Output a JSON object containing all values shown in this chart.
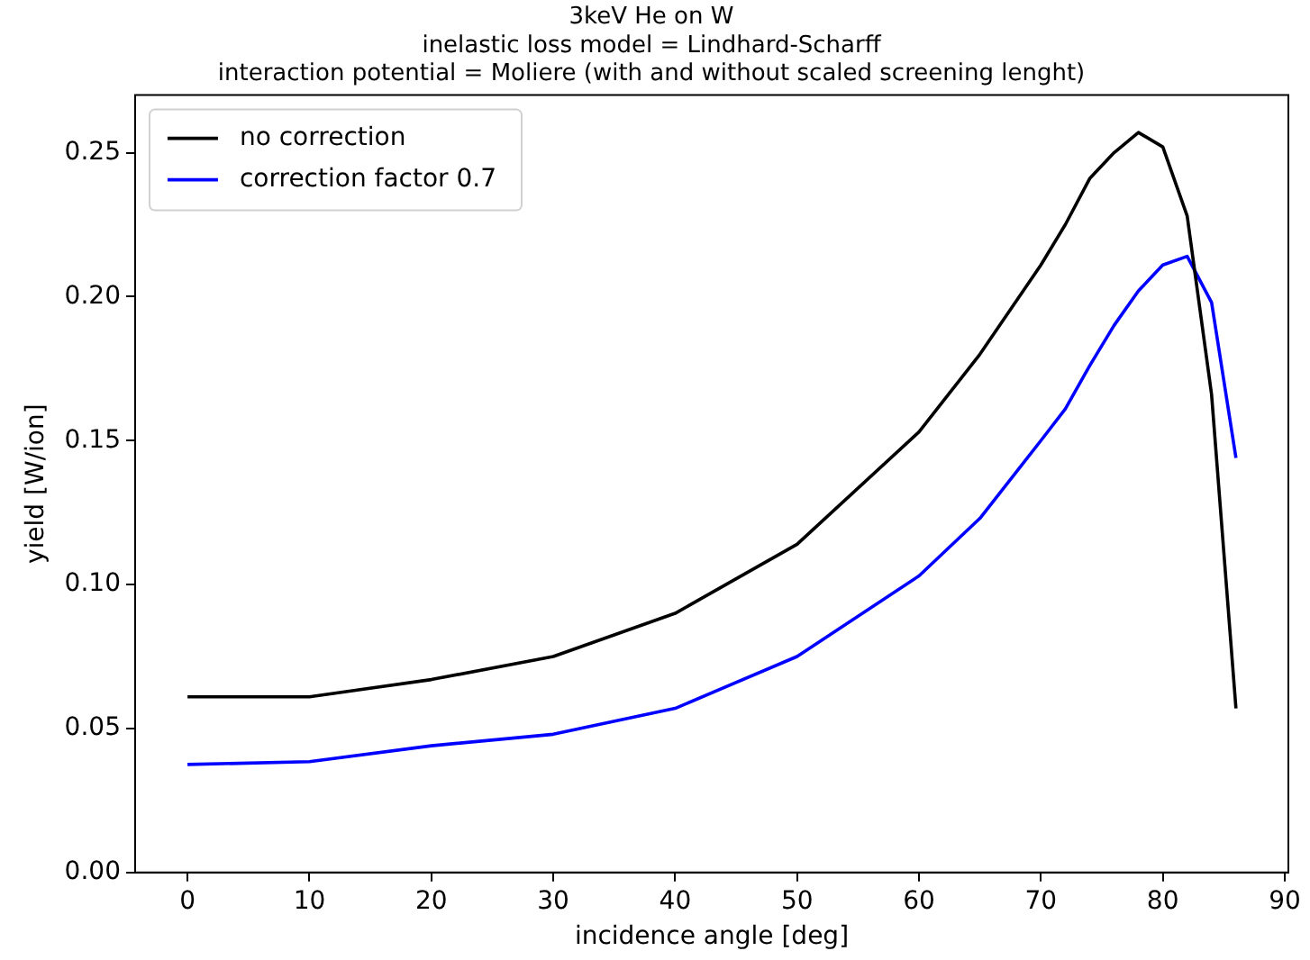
{
  "chart_data": {
    "type": "line",
    "title": [
      "3keV He on W",
      "inelastic loss model = Lindhard-Scharff",
      "interaction potential = Moliere (with and without scaled screening lenght)"
    ],
    "xlabel": "incidence angle [deg]",
    "ylabel": "yield [W/ion]",
    "x": [
      0,
      10,
      20,
      30,
      40,
      50,
      60,
      65,
      70,
      72,
      74,
      76,
      78,
      80,
      82,
      84,
      86
    ],
    "series": [
      {
        "name": "no correction",
        "color": "#000000",
        "values": [
          0.061,
          0.061,
          0.067,
          0.075,
          0.09,
          0.114,
          0.153,
          0.18,
          0.211,
          0.225,
          0.241,
          0.25,
          0.257,
          0.252,
          0.228,
          0.166,
          0.057
        ]
      },
      {
        "name": "correction factor 0.7",
        "color": "#0000ff",
        "values": [
          0.0375,
          0.0385,
          0.044,
          0.048,
          0.057,
          0.075,
          0.103,
          0.123,
          0.15,
          0.161,
          0.176,
          0.19,
          0.202,
          0.211,
          0.214,
          0.198,
          0.144
        ]
      }
    ],
    "xlim": [
      -4.3,
      90.3
    ],
    "xticks": [
      0,
      10,
      20,
      30,
      40,
      50,
      60,
      70,
      80,
      90
    ],
    "ylim": [
      0,
      0.27
    ],
    "yticks": [
      {
        "value": 0,
        "label": "0.00"
      },
      {
        "value": 0.05,
        "label": "0.05"
      },
      {
        "value": 0.1,
        "label": "0.10"
      },
      {
        "value": 0.15,
        "label": "0.15"
      },
      {
        "value": 0.2,
        "label": "0.20"
      },
      {
        "value": 0.25,
        "label": "0.25"
      }
    ],
    "grid": false,
    "legend": "top left",
    "marker": "none",
    "line_style": "solid"
  }
}
